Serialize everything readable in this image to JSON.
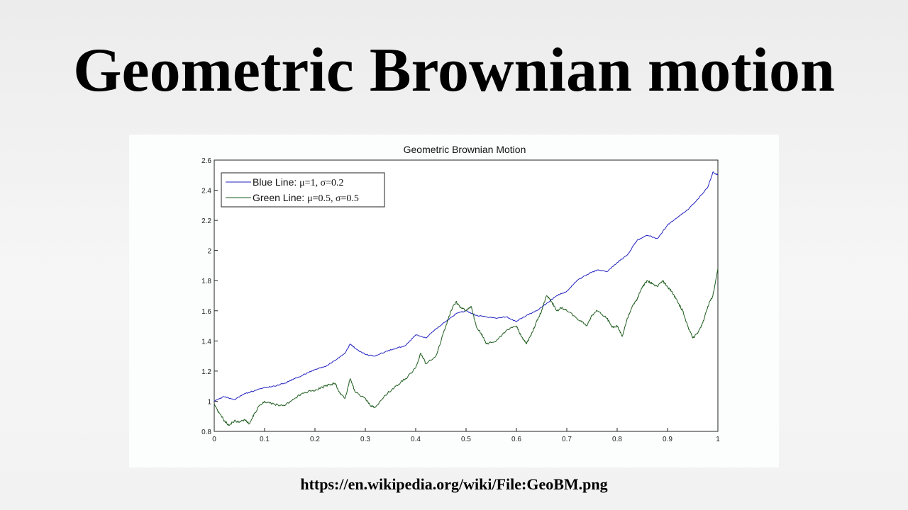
{
  "slide": {
    "title": "Geometric Brownian motion",
    "source_url": "https://en.wikipedia.org/wiki/File:GeoBM.png"
  },
  "chart_data": {
    "type": "line",
    "title": "Geometric Brownian Motion",
    "xlabel": "",
    "ylabel": "",
    "xlim": [
      0,
      1
    ],
    "ylim": [
      0.8,
      2.6
    ],
    "x_ticks": [
      "0",
      "0.1",
      "0.2",
      "0.3",
      "0.4",
      "0.5",
      "0.6",
      "0.7",
      "0.8",
      "0.9",
      "1"
    ],
    "y_ticks": [
      "0.8",
      "1",
      "1.2",
      "1.4",
      "1.6",
      "1.8",
      "2",
      "2.2",
      "2.4",
      "2.6"
    ],
    "grid": false,
    "legend_position": "top-left",
    "series": [
      {
        "label_prefix": "Blue Line: ",
        "label_params": "μ=1, σ=0.2",
        "color": "#2020c0",
        "x": [
          0,
          0.02,
          0.04,
          0.06,
          0.08,
          0.1,
          0.12,
          0.14,
          0.16,
          0.18,
          0.2,
          0.22,
          0.24,
          0.26,
          0.27,
          0.28,
          0.3,
          0.32,
          0.34,
          0.36,
          0.38,
          0.4,
          0.42,
          0.44,
          0.46,
          0.48,
          0.5,
          0.52,
          0.54,
          0.56,
          0.58,
          0.6,
          0.62,
          0.64,
          0.66,
          0.68,
          0.7,
          0.72,
          0.74,
          0.76,
          0.78,
          0.8,
          0.82,
          0.84,
          0.86,
          0.88,
          0.9,
          0.92,
          0.94,
          0.96,
          0.98,
          0.99,
          1.0
        ],
        "y": [
          1.0,
          1.03,
          1.01,
          1.05,
          1.07,
          1.09,
          1.1,
          1.12,
          1.15,
          1.18,
          1.21,
          1.23,
          1.27,
          1.32,
          1.38,
          1.35,
          1.31,
          1.3,
          1.33,
          1.35,
          1.37,
          1.44,
          1.42,
          1.48,
          1.53,
          1.58,
          1.6,
          1.57,
          1.56,
          1.55,
          1.56,
          1.53,
          1.57,
          1.6,
          1.65,
          1.7,
          1.73,
          1.8,
          1.84,
          1.87,
          1.86,
          1.92,
          1.97,
          2.07,
          2.1,
          2.08,
          2.17,
          2.22,
          2.27,
          2.34,
          2.42,
          2.52,
          2.5
        ]
      },
      {
        "label_prefix": "Green Line: ",
        "label_params": "μ=0.5, σ=0.5",
        "color": "#1e5c1e",
        "x": [
          0,
          0.01,
          0.02,
          0.03,
          0.04,
          0.05,
          0.06,
          0.07,
          0.08,
          0.09,
          0.1,
          0.12,
          0.14,
          0.16,
          0.18,
          0.2,
          0.22,
          0.24,
          0.25,
          0.26,
          0.27,
          0.28,
          0.3,
          0.31,
          0.32,
          0.34,
          0.36,
          0.38,
          0.4,
          0.41,
          0.42,
          0.44,
          0.46,
          0.47,
          0.48,
          0.49,
          0.5,
          0.51,
          0.52,
          0.53,
          0.54,
          0.56,
          0.58,
          0.6,
          0.61,
          0.62,
          0.63,
          0.64,
          0.65,
          0.66,
          0.67,
          0.68,
          0.69,
          0.7,
          0.72,
          0.74,
          0.75,
          0.76,
          0.78,
          0.79,
          0.8,
          0.81,
          0.82,
          0.83,
          0.84,
          0.85,
          0.86,
          0.87,
          0.88,
          0.89,
          0.9,
          0.91,
          0.92,
          0.93,
          0.94,
          0.95,
          0.96,
          0.97,
          0.98,
          0.99,
          1.0
        ],
        "y": [
          0.98,
          0.92,
          0.87,
          0.84,
          0.87,
          0.86,
          0.88,
          0.85,
          0.92,
          0.97,
          1.0,
          0.98,
          0.97,
          1.02,
          1.06,
          1.07,
          1.1,
          1.12,
          1.05,
          1.02,
          1.15,
          1.06,
          1.02,
          0.97,
          0.96,
          1.04,
          1.1,
          1.15,
          1.22,
          1.32,
          1.25,
          1.3,
          1.5,
          1.6,
          1.66,
          1.62,
          1.6,
          1.63,
          1.5,
          1.45,
          1.38,
          1.4,
          1.47,
          1.5,
          1.43,
          1.38,
          1.45,
          1.53,
          1.6,
          1.7,
          1.66,
          1.6,
          1.62,
          1.6,
          1.55,
          1.5,
          1.57,
          1.6,
          1.55,
          1.49,
          1.5,
          1.43,
          1.55,
          1.63,
          1.68,
          1.76,
          1.8,
          1.78,
          1.76,
          1.8,
          1.76,
          1.72,
          1.66,
          1.6,
          1.5,
          1.42,
          1.45,
          1.52,
          1.63,
          1.7,
          1.88
        ]
      }
    ]
  }
}
